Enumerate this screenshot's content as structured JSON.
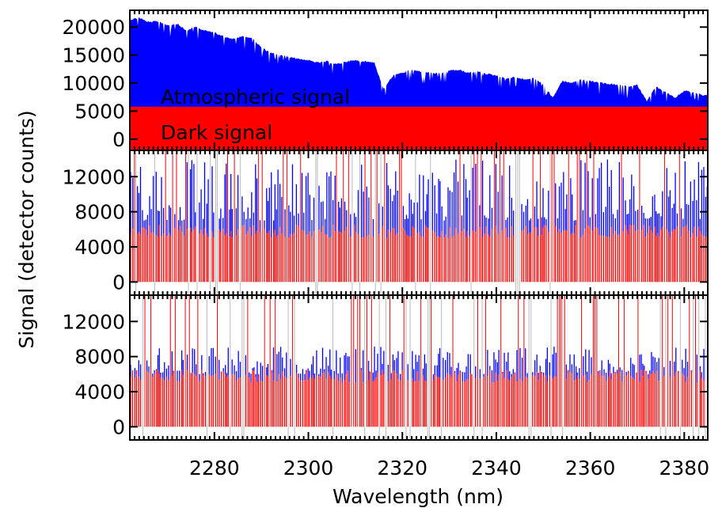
{
  "chart_data": [
    {
      "type": "area",
      "ylim": [
        -2000,
        23000
      ],
      "yticks": [
        0,
        5000,
        10000,
        15000,
        20000
      ],
      "ytick_labels": [
        "0",
        "5000",
        "10000",
        "15000",
        "20000"
      ],
      "series": [
        {
          "name": "Atmospheric signal",
          "color": "#0000ff",
          "x": [
            2262,
            2264,
            2266,
            2268,
            2270,
            2272,
            2274,
            2276,
            2278,
            2280,
            2282,
            2284,
            2286,
            2288,
            2290,
            2292,
            2294,
            2296,
            2298,
            2300,
            2302,
            2304,
            2306,
            2308,
            2310,
            2312,
            2314,
            2316,
            2318,
            2320,
            2322,
            2324,
            2326,
            2328,
            2330,
            2332,
            2334,
            2336,
            2338,
            2340,
            2342,
            2344,
            2346,
            2348,
            2350,
            2352,
            2354,
            2356,
            2358,
            2360,
            2362,
            2364,
            2366,
            2368,
            2370,
            2372,
            2374,
            2376,
            2378,
            2380,
            2382,
            2384
          ],
          "values": [
            21500,
            21800,
            21000,
            21200,
            20500,
            20800,
            19500,
            20200,
            19500,
            19200,
            18500,
            18000,
            18500,
            18200,
            16500,
            15500,
            15200,
            14800,
            14500,
            14200,
            13800,
            14000,
            13500,
            14000,
            14200,
            14000,
            13900,
            9000,
            11500,
            12000,
            12500,
            12200,
            12000,
            11800,
            12400,
            12500,
            12000,
            12200,
            11800,
            11500,
            11000,
            11200,
            10800,
            11000,
            10000,
            7500,
            10500,
            10200,
            10800,
            10500,
            10200,
            10000,
            9800,
            9500,
            9800,
            7000,
            9500,
            8500,
            7500,
            8800,
            8500,
            8000
          ]
        },
        {
          "name": "Dark signal",
          "color": "#ff0000",
          "x": [
            2262,
            2384
          ],
          "values": [
            5800,
            5800
          ]
        }
      ]
    },
    {
      "type": "bar",
      "ylim": [
        -1500,
        15000
      ],
      "yticks": [
        0,
        4000,
        8000,
        12000
      ],
      "ytick_labels": [
        "0",
        "4000",
        "8000",
        "12000"
      ],
      "series": [
        {
          "name": "Atmospheric signal",
          "color": "#0000ff",
          "typical_values": [
            7000,
            14000
          ]
        },
        {
          "name": "Dark signal",
          "color": "#ff0000",
          "typical_values": [
            5000,
            6500
          ]
        }
      ]
    },
    {
      "type": "bar",
      "ylim": [
        -1500,
        15000
      ],
      "yticks": [
        0,
        4000,
        8000,
        12000
      ],
      "ytick_labels": [
        "0",
        "4000",
        "8000",
        "12000"
      ],
      "series": [
        {
          "name": "Atmospheric signal",
          "color": "#0000ff",
          "typical_values": [
            6000,
            9500
          ]
        },
        {
          "name": "Dark signal",
          "color": "#ff0000",
          "typical_values": [
            5000,
            6500
          ]
        }
      ]
    }
  ],
  "axes": {
    "xlabel": "Wavelength (nm)",
    "ylabel": "Signal (detector counts)",
    "xlim": [
      2262,
      2385
    ],
    "xticks": [
      2280,
      2300,
      2320,
      2340,
      2360,
      2380
    ],
    "xtick_labels": [
      "2280",
      "2300",
      "2320",
      "2340",
      "2360",
      "2380"
    ]
  },
  "annotations": {
    "atmospheric_label": "Atmospheric signal",
    "dark_label": "Dark signal"
  }
}
